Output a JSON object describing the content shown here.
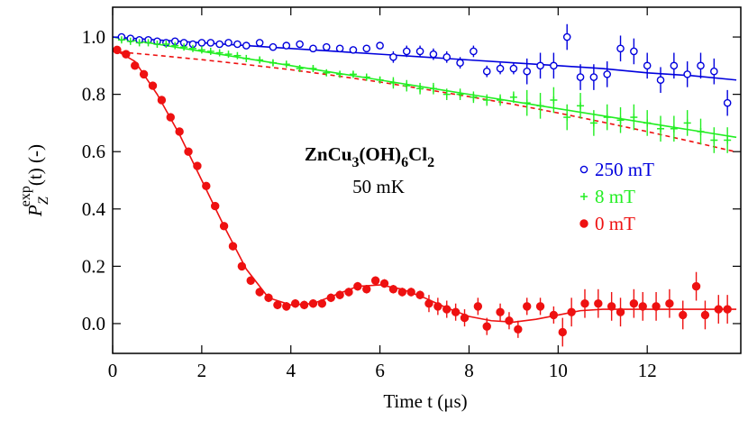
{
  "chart_data": {
    "type": "scatter",
    "annotation": [
      "ZnCu",
      "3",
      "(OH)",
      "6",
      "Cl",
      "2"
    ],
    "subtitle": "50 mK",
    "y_label": {
      "symbol": "P",
      "sub": "Z",
      "sup": "exp",
      "rest": "(t) (-)"
    },
    "x_label": "Time t (μs)",
    "xlim": [
      0,
      14.1
    ],
    "ylim": [
      -0.104,
      1.104
    ],
    "xticks": [
      0,
      2,
      4,
      6,
      8,
      10,
      12
    ],
    "yticks": [
      {
        "value": 0,
        "label": "0.0"
      },
      0.2,
      0.4,
      0.6,
      0.8,
      {
        "value": 1,
        "label": "1.0"
      }
    ],
    "legend": "right",
    "series": [
      {
        "name": "250 mT",
        "color": "#0000dd",
        "marker": "open-circle",
        "x": [
          0.2,
          0.4,
          0.6,
          0.8,
          1.0,
          1.2,
          1.4,
          1.6,
          1.8,
          2.0,
          2.2,
          2.4,
          2.6,
          2.8,
          3.0,
          3.3,
          3.6,
          3.9,
          4.2,
          4.5,
          4.8,
          5.1,
          5.4,
          5.7,
          6.0,
          6.3,
          6.6,
          6.9,
          7.2,
          7.5,
          7.8,
          8.1,
          8.4,
          8.7,
          9.0,
          9.3,
          9.6,
          9.9,
          10.2,
          10.5,
          10.8,
          11.1,
          11.4,
          11.7,
          12.0,
          12.3,
          12.6,
          12.9,
          13.2,
          13.5,
          13.8
        ],
        "values": [
          1.0,
          0.995,
          0.99,
          0.99,
          0.985,
          0.98,
          0.985,
          0.98,
          0.975,
          0.98,
          0.98,
          0.975,
          0.98,
          0.975,
          0.97,
          0.98,
          0.965,
          0.97,
          0.975,
          0.96,
          0.965,
          0.96,
          0.955,
          0.96,
          0.97,
          0.93,
          0.95,
          0.95,
          0.94,
          0.93,
          0.91,
          0.95,
          0.88,
          0.89,
          0.89,
          0.88,
          0.9,
          0.9,
          1.0,
          0.86,
          0.86,
          0.87,
          0.96,
          0.95,
          0.9,
          0.85,
          0.9,
          0.87,
          0.9,
          0.88,
          0.77
        ],
        "errors": [
          0.005,
          0.005,
          0.005,
          0.005,
          0.005,
          0.005,
          0.005,
          0.005,
          0.005,
          0.005,
          0.005,
          0.005,
          0.005,
          0.005,
          0.005,
          0.01,
          0.01,
          0.01,
          0.01,
          0.01,
          0.01,
          0.01,
          0.01,
          0.01,
          0.01,
          0.02,
          0.02,
          0.02,
          0.02,
          0.02,
          0.02,
          0.02,
          0.02,
          0.02,
          0.02,
          0.045,
          0.045,
          0.045,
          0.045,
          0.045,
          0.045,
          0.045,
          0.045,
          0.045,
          0.045,
          0.045,
          0.045,
          0.045,
          0.045,
          0.045,
          0.045
        ]
      },
      {
        "name": "8 mT",
        "color": "#22ee22",
        "marker": "plus",
        "x": [
          0.2,
          0.4,
          0.6,
          0.8,
          1.0,
          1.2,
          1.4,
          1.6,
          1.8,
          2.0,
          2.2,
          2.4,
          2.6,
          2.8,
          3.0,
          3.3,
          3.6,
          3.9,
          4.2,
          4.5,
          4.8,
          5.1,
          5.4,
          5.7,
          6.0,
          6.3,
          6.6,
          6.9,
          7.2,
          7.5,
          7.8,
          8.1,
          8.4,
          8.7,
          9.0,
          9.3,
          9.6,
          9.9,
          10.2,
          10.5,
          10.8,
          11.1,
          11.4,
          11.7,
          12.0,
          12.3,
          12.6,
          12.9,
          13.2,
          13.5,
          13.8
        ],
        "values": [
          0.99,
          0.985,
          0.98,
          0.98,
          0.975,
          0.975,
          0.97,
          0.965,
          0.96,
          0.955,
          0.95,
          0.945,
          0.94,
          0.935,
          0.925,
          0.92,
          0.91,
          0.905,
          0.89,
          0.89,
          0.875,
          0.87,
          0.87,
          0.86,
          0.85,
          0.84,
          0.83,
          0.82,
          0.82,
          0.8,
          0.8,
          0.79,
          0.78,
          0.78,
          0.79,
          0.77,
          0.76,
          0.78,
          0.72,
          0.76,
          0.7,
          0.72,
          0.71,
          0.72,
          0.7,
          0.68,
          0.68,
          0.7,
          0.67,
          0.64,
          0.64
        ],
        "errors": [
          0.005,
          0.005,
          0.005,
          0.005,
          0.005,
          0.005,
          0.005,
          0.005,
          0.005,
          0.005,
          0.005,
          0.005,
          0.005,
          0.005,
          0.005,
          0.01,
          0.01,
          0.01,
          0.01,
          0.01,
          0.01,
          0.01,
          0.01,
          0.01,
          0.01,
          0.02,
          0.02,
          0.02,
          0.02,
          0.02,
          0.02,
          0.02,
          0.02,
          0.02,
          0.02,
          0.045,
          0.045,
          0.045,
          0.045,
          0.045,
          0.045,
          0.045,
          0.045,
          0.045,
          0.045,
          0.045,
          0.045,
          0.045,
          0.045,
          0.045,
          0.045
        ]
      },
      {
        "name": "0 mT",
        "color": "#ee1111",
        "marker": "filled-circle",
        "x": [
          0.1,
          0.3,
          0.5,
          0.7,
          0.9,
          1.1,
          1.3,
          1.5,
          1.7,
          1.9,
          2.1,
          2.3,
          2.5,
          2.7,
          2.9,
          3.1,
          3.3,
          3.5,
          3.7,
          3.9,
          4.1,
          4.3,
          4.5,
          4.7,
          4.9,
          5.1,
          5.3,
          5.5,
          5.7,
          5.9,
          6.1,
          6.3,
          6.5,
          6.7,
          6.9,
          7.1,
          7.3,
          7.5,
          7.7,
          7.9,
          8.2,
          8.4,
          8.7,
          8.9,
          9.1,
          9.3,
          9.6,
          9.9,
          10.1,
          10.3,
          10.6,
          10.9,
          11.2,
          11.4,
          11.7,
          11.9,
          12.2,
          12.5,
          12.8,
          13.1,
          13.3,
          13.6,
          13.8
        ],
        "values": [
          0.955,
          0.94,
          0.9,
          0.87,
          0.83,
          0.78,
          0.72,
          0.67,
          0.6,
          0.55,
          0.48,
          0.41,
          0.34,
          0.27,
          0.2,
          0.15,
          0.11,
          0.09,
          0.065,
          0.06,
          0.07,
          0.065,
          0.07,
          0.07,
          0.09,
          0.1,
          0.11,
          0.13,
          0.12,
          0.15,
          0.14,
          0.12,
          0.11,
          0.11,
          0.1,
          0.07,
          0.06,
          0.05,
          0.04,
          0.02,
          0.06,
          -0.01,
          0.04,
          0.01,
          -0.02,
          0.06,
          0.06,
          0.03,
          -0.03,
          0.04,
          0.07,
          0.07,
          0.06,
          0.04,
          0.07,
          0.06,
          0.06,
          0.07,
          0.03,
          0.13,
          0.03,
          0.05,
          0.05
        ],
        "errors": [
          0.005,
          0.005,
          0.005,
          0.005,
          0.005,
          0.005,
          0.005,
          0.005,
          0.005,
          0.005,
          0.005,
          0.005,
          0.005,
          0.005,
          0.005,
          0.015,
          0.015,
          0.015,
          0.015,
          0.015,
          0.015,
          0.015,
          0.015,
          0.015,
          0.015,
          0.015,
          0.015,
          0.015,
          0.015,
          0.015,
          0.015,
          0.015,
          0.015,
          0.015,
          0.015,
          0.03,
          0.03,
          0.03,
          0.03,
          0.03,
          0.03,
          0.03,
          0.03,
          0.03,
          0.03,
          0.03,
          0.03,
          0.03,
          0.05,
          0.05,
          0.05,
          0.05,
          0.05,
          0.05,
          0.05,
          0.05,
          0.05,
          0.05,
          0.05,
          0.05,
          0.05,
          0.05,
          0.05
        ]
      }
    ],
    "fits": [
      {
        "color": "#ee1111",
        "dash": false,
        "x": [
          0,
          0.5,
          1,
          1.5,
          2,
          2.5,
          3,
          3.5,
          4,
          4.5,
          5,
          5.5,
          6,
          6.5,
          7,
          7.5,
          8,
          8.5,
          9,
          9.5,
          10,
          10.5,
          11,
          11.5,
          12,
          12.5,
          13,
          13.5,
          14
        ],
        "values": [
          0.96,
          0.915,
          0.8,
          0.66,
          0.5,
          0.34,
          0.19,
          0.09,
          0.065,
          0.07,
          0.1,
          0.13,
          0.135,
          0.12,
          0.09,
          0.055,
          0.025,
          0.01,
          0.005,
          0.015,
          0.03,
          0.045,
          0.05,
          0.05,
          0.05,
          0.05,
          0.05,
          0.05,
          0.05
        ]
      },
      {
        "color": "#22ee22",
        "dash": false,
        "x": [
          0,
          1,
          2,
          3,
          4,
          5,
          6,
          7,
          8,
          9,
          10,
          11,
          12,
          13,
          14
        ],
        "values": [
          1.0,
          0.975,
          0.95,
          0.925,
          0.9,
          0.875,
          0.85,
          0.825,
          0.8,
          0.775,
          0.75,
          0.725,
          0.7,
          0.675,
          0.65
        ]
      },
      {
        "color": "#0000dd",
        "dash": false,
        "x": [
          0,
          1,
          2,
          3,
          4,
          5,
          6,
          7,
          8,
          9,
          10,
          11,
          12,
          13,
          14
        ],
        "values": [
          1.0,
          0.99,
          0.98,
          0.97,
          0.96,
          0.95,
          0.94,
          0.93,
          0.92,
          0.91,
          0.9,
          0.89,
          0.875,
          0.865,
          0.85
        ]
      },
      {
        "color": "#ee1111",
        "dash": true,
        "x": [
          0,
          1,
          2,
          3,
          4,
          5,
          6,
          7,
          8,
          9,
          10,
          11,
          12,
          13,
          14
        ],
        "values": [
          0.95,
          0.936,
          0.921,
          0.904,
          0.886,
          0.865,
          0.843,
          0.818,
          0.792,
          0.765,
          0.735,
          0.703,
          0.67,
          0.635,
          0.599
        ]
      }
    ]
  }
}
